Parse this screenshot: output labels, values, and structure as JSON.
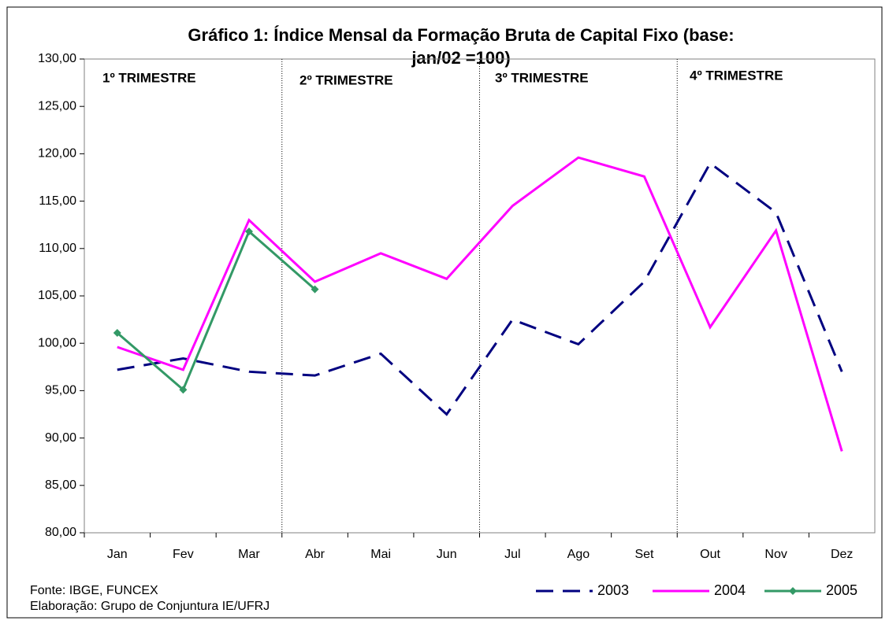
{
  "chart_data": {
    "type": "line",
    "title": [
      "Gráfico 1: Índice Mensal da Formação Bruta de Capital Fixo (base:",
      "jan/02 =100)"
    ],
    "categories": [
      "Jan",
      "Fev",
      "Mar",
      "Abr",
      "Mai",
      "Jun",
      "Jul",
      "Ago",
      "Set",
      "Out",
      "Nov",
      "Dez"
    ],
    "series": [
      {
        "name": "2003",
        "color": "#000080",
        "style": "dashed",
        "values": [
          97.2,
          98.4,
          97.0,
          96.6,
          98.9,
          92.5,
          102.5,
          99.9,
          106.5,
          119.0,
          113.8,
          97.0
        ]
      },
      {
        "name": "2004",
        "color": "#ff00ff",
        "style": "solid",
        "values": [
          99.6,
          97.2,
          113.0,
          106.5,
          109.5,
          106.8,
          114.5,
          119.6,
          117.6,
          101.7,
          111.9,
          88.6
        ]
      },
      {
        "name": "2005",
        "color": "#339966",
        "style": "solid",
        "marker": "diamond",
        "values": [
          101.1,
          95.1,
          111.8,
          105.7,
          null,
          null,
          null,
          null,
          null,
          null,
          null,
          null
        ]
      }
    ],
    "ylim": [
      80,
      130
    ],
    "yticks": [
      {
        "value": 80,
        "label": "80,00"
      },
      {
        "value": 85,
        "label": "85,00"
      },
      {
        "value": 90,
        "label": "90,00"
      },
      {
        "value": 95,
        "label": "95,00"
      },
      {
        "value": 100,
        "label": "100,00"
      },
      {
        "value": 105,
        "label": "105,00"
      },
      {
        "value": 110,
        "label": "110,00"
      },
      {
        "value": 115,
        "label": "115,00"
      },
      {
        "value": 120,
        "label": "120,00"
      },
      {
        "value": 125,
        "label": "125,00"
      },
      {
        "value": 130,
        "label": "130,00"
      }
    ],
    "annotations": [
      "1º TRIMESTRE",
      "2º TRIMESTRE",
      "3º TRIMESTRE",
      "4º TRIMESTRE"
    ],
    "notes": [
      "Fonte: IBGE, FUNCEX",
      "Elaboração: Grupo de Conjuntura IE/UFRJ"
    ],
    "grid": false,
    "legend": "bottom-right"
  }
}
